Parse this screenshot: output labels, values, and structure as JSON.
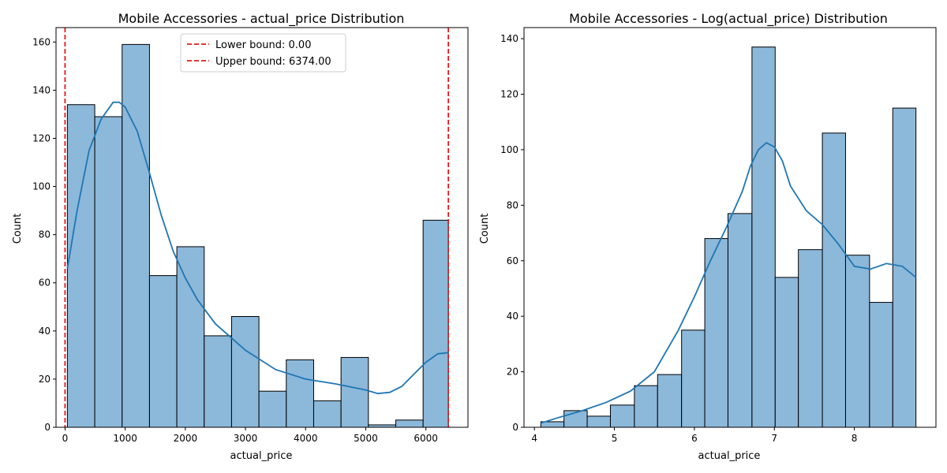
{
  "chart_data": [
    {
      "type": "histogram",
      "title": "Mobile Accessories - actual_price Distribution",
      "xlabel": "actual_price",
      "ylabel": "Count",
      "xlim": [
        -150,
        6700
      ],
      "ylim": [
        0,
        166
      ],
      "xticks": [
        0,
        1000,
        2000,
        3000,
        4000,
        5000,
        6000
      ],
      "yticks": [
        0,
        20,
        40,
        60,
        80,
        100,
        120,
        140,
        160
      ],
      "bins": [
        {
          "x0": 39,
          "x1": 494,
          "count": 134
        },
        {
          "x0": 494,
          "x1": 949,
          "count": 129
        },
        {
          "x0": 949,
          "x1": 1404,
          "count": 159
        },
        {
          "x0": 1404,
          "x1": 1859,
          "count": 63
        },
        {
          "x0": 1859,
          "x1": 2314,
          "count": 75
        },
        {
          "x0": 2314,
          "x1": 2769,
          "count": 38
        },
        {
          "x0": 2769,
          "x1": 3224,
          "count": 46
        },
        {
          "x0": 3224,
          "x1": 3679,
          "count": 15
        },
        {
          "x0": 3679,
          "x1": 4134,
          "count": 28
        },
        {
          "x0": 4134,
          "x1": 4589,
          "count": 11
        },
        {
          "x0": 4589,
          "x1": 5044,
          "count": 29
        },
        {
          "x0": 5044,
          "x1": 5499,
          "count": 1
        },
        {
          "x0": 5499,
          "x1": 5954,
          "count": 3
        },
        {
          "x0": 5954,
          "x1": 6374,
          "count": 86
        }
      ],
      "kde": {
        "x": [
          39,
          200,
          400,
          600,
          800,
          900,
          1000,
          1200,
          1400,
          1600,
          1800,
          2000,
          2200,
          2500,
          3000,
          3500,
          4000,
          4500,
          5000,
          5200,
          5400,
          5600,
          5800,
          6000,
          6200,
          6374
        ],
        "y": [
          66,
          90,
          115,
          128,
          135,
          135,
          133,
          123,
          106,
          88,
          73,
          62,
          53,
          43,
          32,
          24,
          20,
          18,
          15.5,
          14,
          14.5,
          17,
          22,
          27,
          30.5,
          31
        ]
      },
      "vlines": [
        {
          "label": "Lower bound: 0.00",
          "x": 0,
          "color": "#e41a1c"
        },
        {
          "label": "Upper bound: 6374.00",
          "x": 6374,
          "color": "#e41a1c"
        }
      ],
      "legend_position": "top-center",
      "bar_color": "#8cb8da",
      "line_color": "#1f77b4"
    },
    {
      "type": "histogram",
      "title": "Mobile Accessories - Log(actual_price) Distribution",
      "xlabel": "actual_price",
      "ylabel": "Count",
      "xlim": [
        3.87,
        9.02
      ],
      "ylim": [
        0,
        144
      ],
      "xticks": [
        4,
        5,
        6,
        7,
        8
      ],
      "yticks": [
        0,
        20,
        40,
        60,
        80,
        100,
        120,
        140
      ],
      "bins": [
        {
          "x0": 4.08,
          "x1": 4.37,
          "count": 2
        },
        {
          "x0": 4.37,
          "x1": 4.66,
          "count": 6
        },
        {
          "x0": 4.66,
          "x1": 4.95,
          "count": 4
        },
        {
          "x0": 4.95,
          "x1": 5.25,
          "count": 8
        },
        {
          "x0": 5.25,
          "x1": 5.54,
          "count": 15
        },
        {
          "x0": 5.54,
          "x1": 5.84,
          "count": 19
        },
        {
          "x0": 5.84,
          "x1": 6.13,
          "count": 35
        },
        {
          "x0": 6.13,
          "x1": 6.42,
          "count": 68
        },
        {
          "x0": 6.42,
          "x1": 6.72,
          "count": 77
        },
        {
          "x0": 6.72,
          "x1": 7.01,
          "count": 137
        },
        {
          "x0": 7.01,
          "x1": 7.3,
          "count": 54
        },
        {
          "x0": 7.3,
          "x1": 7.6,
          "count": 64
        },
        {
          "x0": 7.6,
          "x1": 7.89,
          "count": 106
        },
        {
          "x0": 7.89,
          "x1": 8.19,
          "count": 62
        },
        {
          "x0": 8.19,
          "x1": 8.48,
          "count": 45
        },
        {
          "x0": 8.48,
          "x1": 8.77,
          "count": 115
        }
      ],
      "kde": {
        "x": [
          4.08,
          4.3,
          4.6,
          4.9,
          5.2,
          5.5,
          5.8,
          6.0,
          6.2,
          6.4,
          6.6,
          6.7,
          6.8,
          6.9,
          7.0,
          7.1,
          7.2,
          7.4,
          7.6,
          7.8,
          8.0,
          8.2,
          8.4,
          8.6,
          8.77
        ],
        "y": [
          1.5,
          3.5,
          6,
          9,
          13,
          20,
          35,
          47,
          60,
          72,
          85,
          94,
          100,
          102.5,
          101,
          96,
          87,
          78,
          73,
          66,
          58,
          57,
          59,
          58,
          54
        ]
      },
      "bar_color": "#8cb8da",
      "line_color": "#1f77b4"
    }
  ]
}
